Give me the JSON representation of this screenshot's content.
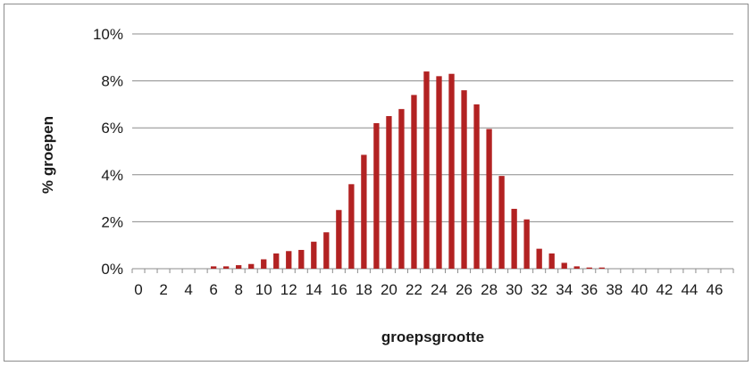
{
  "chart_data": {
    "type": "bar",
    "xlabel": "groepsgrootte",
    "ylabel": "% groepen",
    "ylim": [
      0,
      10
    ],
    "yticks": [
      "0%",
      "2%",
      "4%",
      "6%",
      "8%",
      "10%"
    ],
    "ytick_values": [
      0,
      2,
      4,
      6,
      8,
      10
    ],
    "grid": true,
    "legend": "none",
    "bar_color": "#b22222",
    "categories": [
      0,
      1,
      2,
      3,
      4,
      5,
      6,
      7,
      8,
      9,
      10,
      11,
      12,
      13,
      14,
      15,
      16,
      17,
      18,
      19,
      20,
      21,
      22,
      23,
      24,
      25,
      26,
      27,
      28,
      29,
      30,
      31,
      32,
      33,
      34,
      35,
      36,
      37,
      38,
      39,
      40,
      41,
      42,
      43,
      44,
      45,
      46,
      47
    ],
    "xtick_labels": [
      "0",
      "2",
      "4",
      "6",
      "8",
      "10",
      "12",
      "14",
      "16",
      "18",
      "20",
      "22",
      "24",
      "26",
      "28",
      "30",
      "32",
      "34",
      "36",
      "38",
      "40",
      "42",
      "44",
      "46"
    ],
    "values": [
      0,
      0,
      0,
      0,
      0,
      0,
      0.1,
      0.1,
      0.15,
      0.2,
      0.4,
      0.65,
      0.75,
      0.8,
      1.15,
      1.55,
      2.5,
      3.6,
      4.85,
      6.2,
      6.5,
      6.8,
      7.4,
      8.4,
      8.2,
      8.3,
      7.6,
      7.0,
      5.95,
      3.95,
      2.55,
      2.1,
      0.85,
      0.65,
      0.25,
      0.1,
      0.05,
      0.05,
      0,
      0,
      0,
      0,
      0,
      0,
      0,
      0,
      0,
      0
    ]
  }
}
